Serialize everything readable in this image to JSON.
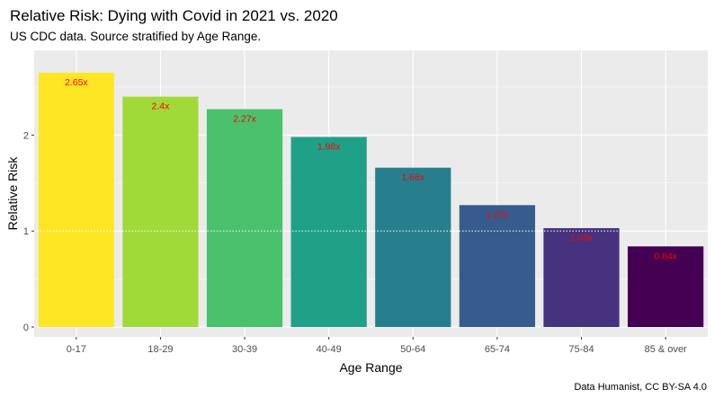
{
  "chart_data": {
    "type": "bar",
    "title": "Relative Risk: Dying with Covid in 2021 vs. 2020",
    "subtitle": "US CDC data. Source stratified by Age Range.",
    "xlabel": "Age Range",
    "ylabel": "Relative Risk",
    "caption": "Data Humanist, CC BY-SA 4.0",
    "categories": [
      "0-17",
      "18-29",
      "30-39",
      "40-49",
      "50-64",
      "65-74",
      "75-84",
      "85 & over"
    ],
    "values": [
      2.65,
      2.4,
      2.27,
      1.98,
      1.66,
      1.27,
      1.03,
      0.84
    ],
    "data_labels": [
      "2.65x",
      "2.4x",
      "2.27x",
      "1.98x",
      "1.66x",
      "1.27x",
      "1.03x",
      "0.84x"
    ],
    "bar_colors": [
      "#FDE725",
      "#A0DA39",
      "#4AC16D",
      "#1FA187",
      "#277F8E",
      "#365C8D",
      "#46327E",
      "#440154"
    ],
    "label_color": "#FF0000",
    "y_ticks": [
      0,
      1,
      2
    ],
    "y_tick_labels": [
      "0",
      "1",
      "2"
    ],
    "ylim": [
      0,
      2.78
    ],
    "reference_line": 1,
    "panel_background": "#EBEBEB",
    "grid_color": "#FFFFFF",
    "grid": true,
    "legend": "none"
  }
}
